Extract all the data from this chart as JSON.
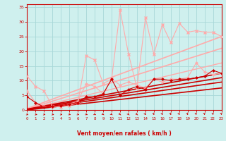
{
  "xlabel": "Vent moyen/en rafales ( km/h )",
  "xlim": [
    0,
    23
  ],
  "ylim": [
    0,
    36
  ],
  "yticks": [
    0,
    5,
    10,
    15,
    20,
    25,
    30,
    35
  ],
  "xticks": [
    0,
    1,
    2,
    3,
    4,
    5,
    6,
    7,
    8,
    9,
    10,
    11,
    12,
    13,
    14,
    15,
    16,
    17,
    18,
    19,
    20,
    21,
    22,
    23
  ],
  "bg_color": "#cff0ee",
  "grid_color": "#a8d8d8",
  "axis_color": "#cc0000",
  "text_color": "#cc0000",
  "series": [
    {
      "x": [
        0,
        1,
        2,
        3,
        4,
        5,
        6,
        7,
        8,
        9,
        10,
        11,
        12,
        13,
        14,
        15,
        16,
        17,
        18,
        19,
        20,
        21,
        22,
        23
      ],
      "y": [
        11.5,
        8.0,
        6.5,
        1.2,
        1.0,
        1.5,
        2.5,
        18.5,
        17.0,
        9.0,
        10.5,
        34.0,
        19.0,
        7.5,
        31.5,
        19.0,
        29.0,
        23.0,
        29.5,
        26.5,
        27.0,
        26.5,
        26.5,
        25.0
      ],
      "color": "#ffaaaa",
      "lw": 0.8,
      "marker": "x",
      "ms": 3.0,
      "mew": 1.0
    },
    {
      "x": [
        0,
        1,
        2,
        3,
        4,
        5,
        6,
        7,
        8,
        9,
        10,
        11,
        12,
        13,
        14,
        15,
        16,
        17,
        18,
        19,
        20,
        21,
        22,
        23
      ],
      "y": [
        6.5,
        2.5,
        1.2,
        1.0,
        1.5,
        2.0,
        3.0,
        9.0,
        8.0,
        5.5,
        10.5,
        8.5,
        9.5,
        8.5,
        7.5,
        10.5,
        9.5,
        10.5,
        10.5,
        11.0,
        16.0,
        13.0,
        12.0,
        12.5
      ],
      "color": "#ffaaaa",
      "lw": 0.8,
      "marker": "D",
      "ms": 2.0,
      "mew": 0.5
    },
    {
      "x": [
        0,
        23
      ],
      "y": [
        0.5,
        25.0
      ],
      "color": "#ffaaaa",
      "lw": 1.2,
      "marker": null,
      "ms": 0
    },
    {
      "x": [
        0,
        23
      ],
      "y": [
        0.3,
        21.0
      ],
      "color": "#ffaaaa",
      "lw": 1.2,
      "marker": null,
      "ms": 0
    },
    {
      "x": [
        0,
        23
      ],
      "y": [
        0.2,
        16.0
      ],
      "color": "#ffaaaa",
      "lw": 1.0,
      "marker": null,
      "ms": 0
    },
    {
      "x": [
        0,
        1,
        2,
        3,
        4,
        5,
        6,
        7,
        8,
        9,
        10,
        11,
        12,
        13,
        14,
        15,
        16,
        17,
        18,
        19,
        20,
        21,
        22,
        23
      ],
      "y": [
        4.5,
        2.5,
        1.0,
        1.2,
        1.5,
        2.0,
        2.5,
        4.5,
        4.5,
        5.5,
        10.5,
        5.0,
        7.0,
        8.0,
        7.0,
        10.5,
        10.5,
        10.0,
        10.5,
        10.5,
        11.0,
        11.5,
        13.5,
        12.5
      ],
      "color": "#cc0000",
      "lw": 0.8,
      "marker": "D",
      "ms": 2.0,
      "mew": 0.5
    },
    {
      "x": [
        0,
        23
      ],
      "y": [
        0.3,
        12.5
      ],
      "color": "#cc0000",
      "lw": 1.2,
      "marker": null,
      "ms": 0
    },
    {
      "x": [
        0,
        23
      ],
      "y": [
        0.2,
        11.0
      ],
      "color": "#cc0000",
      "lw": 1.2,
      "marker": null,
      "ms": 0
    },
    {
      "x": [
        0,
        23
      ],
      "y": [
        0.1,
        9.5
      ],
      "color": "#cc0000",
      "lw": 1.2,
      "marker": null,
      "ms": 0
    },
    {
      "x": [
        0,
        23
      ],
      "y": [
        0.0,
        7.5
      ],
      "color": "#cc0000",
      "lw": 1.2,
      "marker": null,
      "ms": 0
    }
  ],
  "wind_arrow_angles": [
    135,
    120,
    130,
    125,
    130,
    135,
    135,
    140,
    145,
    155,
    155,
    160,
    160,
    160,
    165,
    170,
    170,
    170,
    170,
    170,
    175,
    175,
    175,
    175
  ]
}
